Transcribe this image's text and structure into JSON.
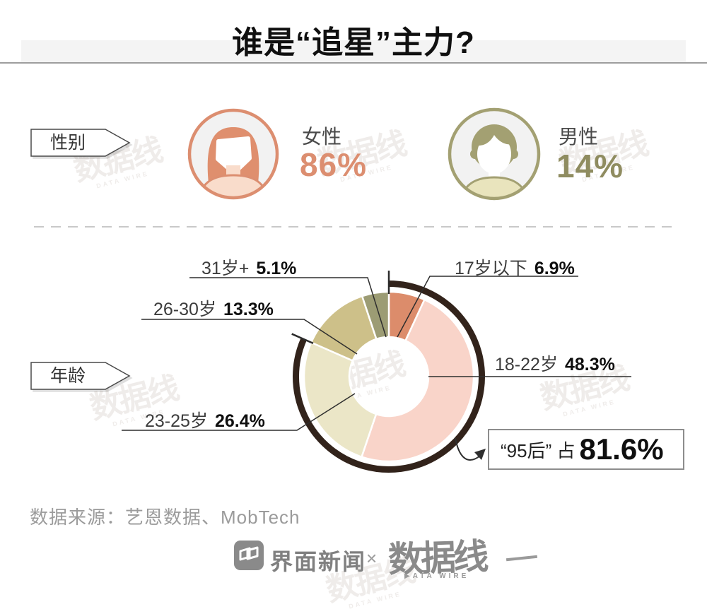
{
  "title": "谁是“追星”主力?",
  "gender_section": {
    "tag": "性别",
    "female": {
      "label": "女性",
      "value": "86%"
    },
    "male": {
      "label": "男性",
      "value": "14%"
    }
  },
  "age_section": {
    "tag": "年龄",
    "callout_prefix": "“95后” 占",
    "callout_value": "81.6%"
  },
  "chart_data": {
    "type": "pie",
    "donut": true,
    "start_angle_deg": 0,
    "direction": "clockwise",
    "unit": "%",
    "categories": [
      "17岁以下",
      "18-22岁",
      "23-25岁",
      "26-30岁",
      "31岁+"
    ],
    "values": [
      6.9,
      48.3,
      26.4,
      13.3,
      5.1
    ],
    "value_labels": [
      "6.9%",
      "48.3%",
      "26.4%",
      "13.3%",
      "5.1%"
    ],
    "colors": [
      "#DC8C6B",
      "#F9D4C9",
      "#EBE6C7",
      "#CDC089",
      "#9C9C74"
    ],
    "bracket": {
      "label": "“95后” 占 81.6%",
      "value_pct": 81.6,
      "color": "#32231B"
    }
  },
  "source": "数据来源：艺恩数据、MobTech",
  "footer": {
    "jiemian": "界面新闻",
    "cross": "×",
    "datawire": "数据线",
    "datawire_sub": "▶ATA WIRE"
  },
  "watermark": {
    "text": "数据线",
    "sub": "DATA WIRE"
  },
  "colors": {
    "female_accent": "#DC8E70",
    "male_accent": "#8F8C60",
    "male_ring": "#A3A072",
    "bracket": "#32231B"
  }
}
